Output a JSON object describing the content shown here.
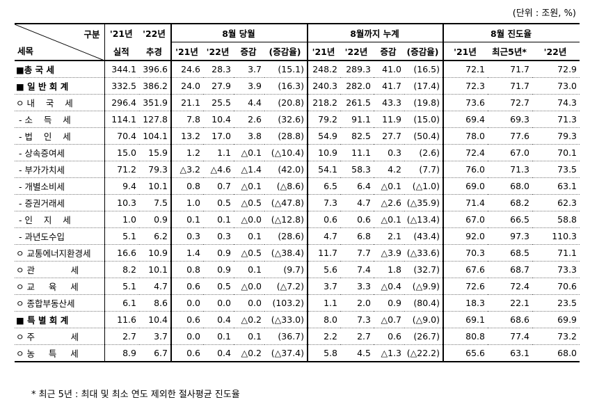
{
  "unit_note": "(단위 : 조원, %)",
  "header": {
    "gubun": "구분",
    "semok": "세목",
    "y21": "'21년",
    "y22": "'22년",
    "silj": "실적",
    "chug": "추경",
    "aug": "8월 당월",
    "cum": "8월까지 누계",
    "prog": "8월 진도율",
    "c21": "'21년",
    "c22": "'22년",
    "chg": "증감",
    "chgr": "(증감율)",
    "recent5": "최근5년*"
  },
  "rows": [
    {
      "label": "■총 국 세",
      "cells": [
        "344.1",
        "396.6",
        "24.6",
        "28.3",
        "3.7",
        "(15.1)",
        "248.2",
        "289.3",
        "41.0",
        "(16.5)",
        "72.1",
        "71.7",
        "72.9"
      ]
    },
    {
      "label": "■ 일 반 회 계",
      "cells": [
        "332.5",
        "386.2",
        "24.0",
        "27.9",
        "3.9",
        "(16.3)",
        "240.3",
        "282.0",
        "41.7",
        "(17.4)",
        "72.3",
        "71.7",
        "73.0"
      ]
    },
    {
      "label": "ㅇ 내    국    세",
      "cells": [
        "296.4",
        "351.9",
        "21.1",
        "25.5",
        "4.4",
        "(20.8)",
        "218.2",
        "261.5",
        "43.3",
        "(19.8)",
        "73.6",
        "72.7",
        "74.3"
      ]
    },
    {
      "label": " - 소    득    세",
      "cells": [
        "114.1",
        "127.8",
        "7.8",
        "10.4",
        "2.6",
        "(32.6)",
        "79.2",
        "91.1",
        "11.9",
        "(15.0)",
        "69.4",
        "69.3",
        "71.3"
      ]
    },
    {
      "label": " - 법    인    세",
      "cells": [
        "70.4",
        "104.1",
        "13.2",
        "17.0",
        "3.8",
        "(28.8)",
        "54.9",
        "82.5",
        "27.7",
        "(50.4)",
        "78.0",
        "77.6",
        "79.3"
      ]
    },
    {
      "label": " - 상속증여세",
      "cells": [
        "15.0",
        "15.9",
        "1.2",
        "1.1",
        "△0.1",
        "(△10.4)",
        "10.9",
        "11.1",
        "0.3",
        "(2.6)",
        "72.4",
        "67.0",
        "70.1"
      ]
    },
    {
      "label": " - 부가가치세",
      "cells": [
        "71.2",
        "79.3",
        "△3.2",
        "△4.6",
        "△1.4",
        "(42.0)",
        "54.1",
        "58.3",
        "4.2",
        "(7.7)",
        "76.0",
        "71.3",
        "73.5"
      ]
    },
    {
      "label": " - 개별소비세",
      "cells": [
        "9.4",
        "10.1",
        "0.8",
        "0.7",
        "△0.1",
        "(△8.6)",
        "6.5",
        "6.4",
        "△0.1",
        "(△1.0)",
        "69.0",
        "68.0",
        "63.1"
      ]
    },
    {
      "label": " - 증권거래세",
      "cells": [
        "10.3",
        "7.5",
        "1.0",
        "0.5",
        "△0.5",
        "(△47.8)",
        "7.3",
        "4.7",
        "△2.6",
        "(△35.9)",
        "71.4",
        "68.2",
        "62.3"
      ]
    },
    {
      "label": " - 인    지    세",
      "cells": [
        "1.0",
        "0.9",
        "0.1",
        "0.1",
        "△0.0",
        "(△12.8)",
        "0.6",
        "0.6",
        "△0.1",
        "(△13.4)",
        "67.0",
        "66.5",
        "58.8"
      ]
    },
    {
      "label": " - 과년도수입",
      "cells": [
        "5.1",
        "6.2",
        "0.3",
        "0.3",
        "0.1",
        "(28.6)",
        "4.7",
        "6.8",
        "2.1",
        "(43.4)",
        "92.0",
        "97.3",
        "110.3"
      ]
    },
    {
      "label": "ㅇ 교통에너지환경세",
      "cells": [
        "16.6",
        "10.9",
        "1.4",
        "0.9",
        "△0.5",
        "(△38.4)",
        "11.7",
        "7.7",
        "△3.9",
        "(△33.6)",
        "70.3",
        "68.5",
        "71.1"
      ]
    },
    {
      "label": "ㅇ 관             세",
      "cells": [
        "8.2",
        "10.1",
        "0.8",
        "0.9",
        "0.1",
        "(9.7)",
        "5.6",
        "7.4",
        "1.8",
        "(32.7)",
        "67.6",
        "68.7",
        "73.3"
      ]
    },
    {
      "label": "ㅇ 교     육     세",
      "cells": [
        "5.1",
        "4.7",
        "0.6",
        "0.5",
        "△0.0",
        "(△7.2)",
        "3.7",
        "3.3",
        "△0.4",
        "(△9.9)",
        "72.6",
        "72.4",
        "70.6"
      ]
    },
    {
      "label": "ㅇ 종합부동산세",
      "cells": [
        "6.1",
        "8.6",
        "0.0",
        "0.0",
        "0.0",
        "(103.2)",
        "1.1",
        "2.0",
        "0.9",
        "(80.4)",
        "18.3",
        "22.1",
        "23.5"
      ]
    },
    {
      "label": "■ 특 별 회 계",
      "cells": [
        "11.6",
        "10.4",
        "0.6",
        "0.4",
        "△0.2",
        "(△33.0)",
        "8.0",
        "7.3",
        "△0.7",
        "(△9.0)",
        "69.1",
        "68.6",
        "69.9"
      ]
    },
    {
      "label": "ㅇ 주             세",
      "cells": [
        "2.7",
        "3.7",
        "0.0",
        "0.1",
        "0.1",
        "(36.7)",
        "2.2",
        "2.7",
        "0.6",
        "(26.7)",
        "80.8",
        "77.4",
        "73.2"
      ]
    },
    {
      "label": "ㅇ 농     특     세",
      "cells": [
        "8.9",
        "6.7",
        "0.6",
        "0.4",
        "△0.2",
        "(△37.4)",
        "5.8",
        "4.5",
        "△1.3",
        "(△22.2)",
        "65.6",
        "63.1",
        "68.0"
      ]
    }
  ],
  "footnote": "* 최근 5년 : 최대 및 최소 연도 제외한 절사평균 진도율"
}
